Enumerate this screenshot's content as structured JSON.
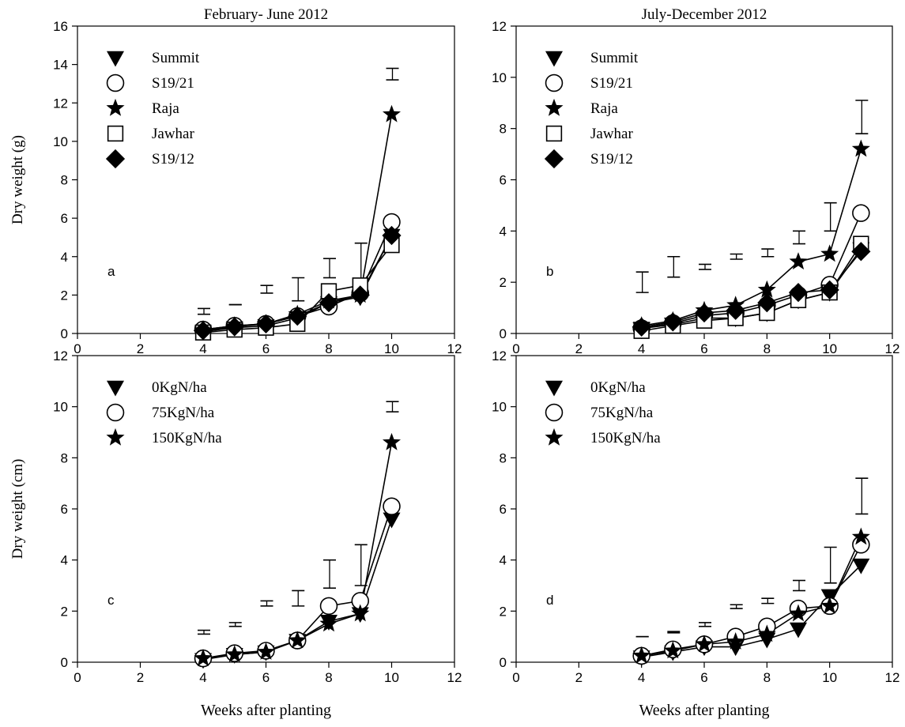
{
  "chart_data": [
    {
      "id": "a",
      "type": "line",
      "title": "February- June 2012",
      "panel_label": "a",
      "xlabel": "",
      "ylabel": "Dry weight (g)",
      "xlim": [
        0,
        12
      ],
      "ylim": [
        0,
        16
      ],
      "xticks": [
        0,
        2,
        4,
        6,
        8,
        10,
        12
      ],
      "yticks": [
        0,
        2,
        4,
        6,
        8,
        10,
        12,
        14,
        16
      ],
      "legend_position": "top-left",
      "x": [
        4,
        5,
        6,
        7,
        8,
        9,
        10
      ],
      "series": [
        {
          "name": "Summit",
          "marker": "triangle-down",
          "values": [
            0.1,
            0.3,
            0.4,
            0.8,
            1.6,
            1.9,
            5.1
          ]
        },
        {
          "name": "S19/21",
          "marker": "circle",
          "values": [
            0.2,
            0.4,
            0.5,
            0.9,
            1.4,
            2.1,
            5.8
          ]
        },
        {
          "name": "Raja",
          "marker": "star",
          "values": [
            0.2,
            0.4,
            0.5,
            1.0,
            1.7,
            2.0,
            11.4
          ]
        },
        {
          "name": "Jawhar",
          "marker": "square",
          "values": [
            0.05,
            0.2,
            0.3,
            0.5,
            2.2,
            2.5,
            4.6
          ]
        },
        {
          "name": "S19/12",
          "marker": "diamond",
          "values": [
            0.15,
            0.35,
            0.5,
            0.9,
            1.6,
            2.0,
            5.1
          ]
        }
      ],
      "error_bars": [
        {
          "x": 4,
          "low": 1.0,
          "high": 1.3
        },
        {
          "x": 5,
          "low": 1.5,
          "high": 1.5
        },
        {
          "x": 6,
          "low": 2.1,
          "high": 2.5
        },
        {
          "x": 7,
          "low": 1.7,
          "high": 2.9
        },
        {
          "x": 8,
          "low": 2.9,
          "high": 3.9
        },
        {
          "x": 9,
          "low": 2.5,
          "high": 4.7
        },
        {
          "x": 10,
          "low": 13.2,
          "high": 13.8
        }
      ]
    },
    {
      "id": "b",
      "type": "line",
      "title": "July-December 2012",
      "panel_label": "b",
      "xlabel": "",
      "ylabel": "",
      "xlim": [
        0,
        12
      ],
      "ylim": [
        0,
        12
      ],
      "xticks": [
        0,
        2,
        4,
        6,
        8,
        10,
        12
      ],
      "yticks": [
        0,
        2,
        4,
        6,
        8,
        10,
        12
      ],
      "legend_position": "top-left",
      "x": [
        4,
        5,
        6,
        7,
        8,
        9,
        10,
        11
      ],
      "series": [
        {
          "name": "Summit",
          "marker": "triangle-down",
          "values": [
            0.2,
            0.35,
            0.6,
            0.6,
            0.8,
            1.3,
            1.6,
            3.3
          ]
        },
        {
          "name": "S19/21",
          "marker": "circle",
          "values": [
            0.2,
            0.4,
            0.7,
            0.8,
            1.1,
            1.5,
            1.9,
            4.7
          ]
        },
        {
          "name": "Raja",
          "marker": "star",
          "values": [
            0.3,
            0.5,
            0.9,
            1.1,
            1.7,
            2.8,
            3.1,
            7.2
          ]
        },
        {
          "name": "Jawhar",
          "marker": "square",
          "values": [
            0.1,
            0.3,
            0.5,
            0.6,
            0.8,
            1.3,
            1.6,
            3.5
          ]
        },
        {
          "name": "S19/12",
          "marker": "diamond",
          "values": [
            0.25,
            0.45,
            0.8,
            0.9,
            1.2,
            1.6,
            1.7,
            3.2
          ]
        }
      ],
      "error_bars": [
        {
          "x": 4,
          "low": 1.6,
          "high": 2.4
        },
        {
          "x": 5,
          "low": 2.2,
          "high": 3.0
        },
        {
          "x": 6,
          "low": 2.5,
          "high": 2.7
        },
        {
          "x": 7,
          "low": 2.9,
          "high": 3.1
        },
        {
          "x": 8,
          "low": 3.0,
          "high": 3.3
        },
        {
          "x": 9,
          "low": 3.5,
          "high": 4.0
        },
        {
          "x": 10,
          "low": 4.0,
          "high": 5.1
        },
        {
          "x": 11,
          "low": 7.8,
          "high": 9.1
        }
      ]
    },
    {
      "id": "c",
      "type": "line",
      "title": "",
      "panel_label": "c",
      "xlabel": "Weeks after planting",
      "ylabel": "Dry weight (cm)",
      "xlim": [
        0,
        12
      ],
      "ylim": [
        0,
        12
      ],
      "xticks": [
        0,
        2,
        4,
        6,
        8,
        10,
        12
      ],
      "yticks": [
        0,
        2,
        4,
        6,
        8,
        10,
        12
      ],
      "legend_position": "top-left",
      "x": [
        4,
        5,
        6,
        7,
        8,
        9,
        10
      ],
      "series": [
        {
          "name": "0KgN/ha",
          "marker": "triangle-down",
          "values": [
            0.1,
            0.3,
            0.4,
            0.85,
            1.6,
            1.9,
            5.6
          ]
        },
        {
          "name": "75KgN/ha",
          "marker": "circle",
          "values": [
            0.15,
            0.35,
            0.45,
            0.85,
            2.2,
            2.4,
            6.1
          ]
        },
        {
          "name": "150KgN/ha",
          "marker": "star",
          "values": [
            0.15,
            0.3,
            0.4,
            0.85,
            1.5,
            1.9,
            8.6
          ]
        }
      ],
      "error_bars": [
        {
          "x": 4,
          "low": 1.1,
          "high": 1.25
        },
        {
          "x": 5,
          "low": 1.4,
          "high": 1.55
        },
        {
          "x": 6,
          "low": 2.2,
          "high": 2.4
        },
        {
          "x": 7,
          "low": 2.2,
          "high": 2.8
        },
        {
          "x": 8,
          "low": 2.9,
          "high": 4.0
        },
        {
          "x": 9,
          "low": 3.0,
          "high": 4.6
        },
        {
          "x": 10,
          "low": 9.8,
          "high": 10.2
        }
      ]
    },
    {
      "id": "d",
      "type": "line",
      "title": "",
      "panel_label": "d",
      "xlabel": "Weeks after planting",
      "ylabel": "",
      "xlim": [
        0,
        12
      ],
      "ylim": [
        0,
        12
      ],
      "xticks": [
        0,
        2,
        4,
        6,
        8,
        10,
        12
      ],
      "yticks": [
        0,
        2,
        4,
        6,
        8,
        10,
        12
      ],
      "legend_position": "top-left",
      "x": [
        4,
        5,
        6,
        7,
        8,
        9,
        10,
        11
      ],
      "series": [
        {
          "name": "0KgN/ha",
          "marker": "triangle-down",
          "values": [
            0.2,
            0.4,
            0.6,
            0.6,
            0.9,
            1.3,
            2.6,
            3.8
          ]
        },
        {
          "name": "75KgN/ha",
          "marker": "circle",
          "values": [
            0.25,
            0.5,
            0.7,
            1.0,
            1.4,
            2.1,
            2.2,
            4.6
          ]
        },
        {
          "name": "150KgN/ha",
          "marker": "star",
          "values": [
            0.25,
            0.45,
            0.7,
            0.8,
            1.1,
            1.9,
            2.2,
            4.9
          ]
        }
      ],
      "error_bars": [
        {
          "x": 4,
          "low": 1.0,
          "high": 1.0
        },
        {
          "x": 5,
          "low": 1.15,
          "high": 1.2
        },
        {
          "x": 6,
          "low": 1.4,
          "high": 1.55
        },
        {
          "x": 7,
          "low": 2.1,
          "high": 2.25
        },
        {
          "x": 8,
          "low": 2.3,
          "high": 2.5
        },
        {
          "x": 9,
          "low": 2.8,
          "high": 3.2
        },
        {
          "x": 10,
          "low": 3.1,
          "high": 4.5
        },
        {
          "x": 11,
          "low": 5.8,
          "high": 7.2
        }
      ]
    }
  ]
}
